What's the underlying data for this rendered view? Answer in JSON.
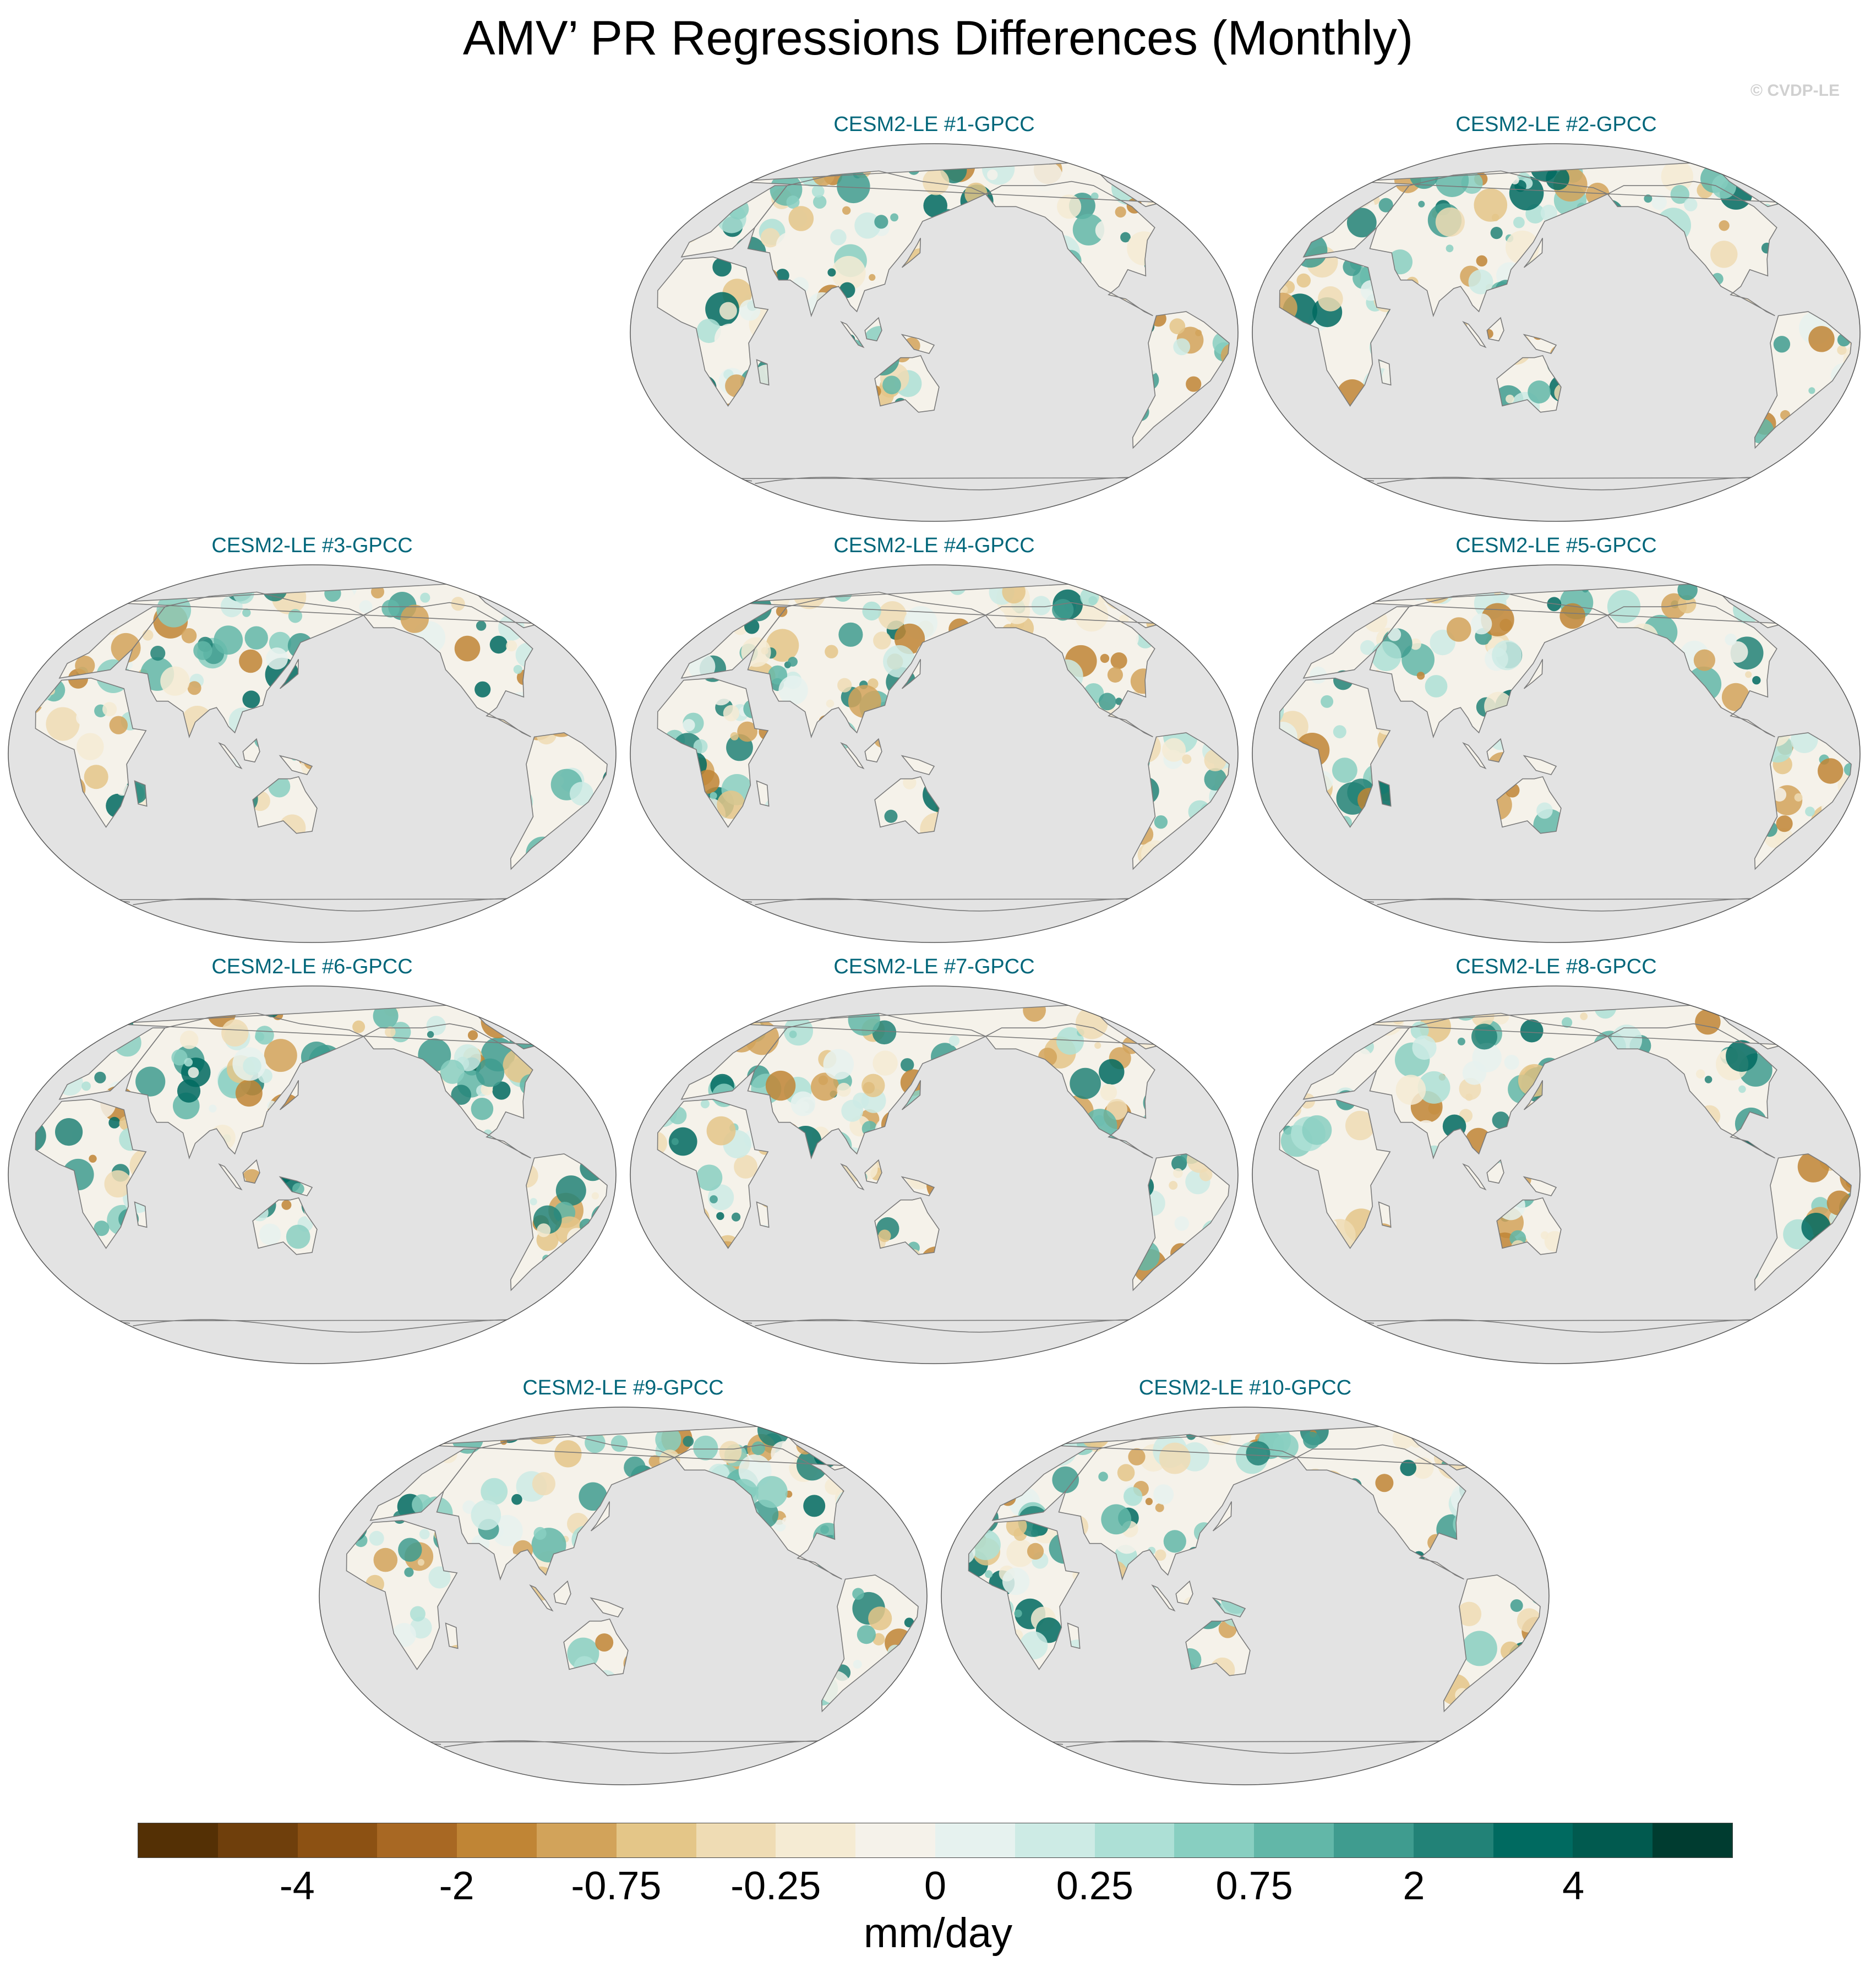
{
  "title": "AMV’ PR Regressions Differences (Monthly)",
  "copyright": "© CVDP-LE",
  "panels": [
    {
      "title": "CESM2-LE #1-GPCC"
    },
    {
      "title": "CESM2-LE #2-GPCC"
    },
    {
      "title": "CESM2-LE #3-GPCC"
    },
    {
      "title": "CESM2-LE #4-GPCC"
    },
    {
      "title": "CESM2-LE #5-GPCC"
    },
    {
      "title": "CESM2-LE #6-GPCC"
    },
    {
      "title": "CESM2-LE #7-GPCC"
    },
    {
      "title": "CESM2-LE #8-GPCC"
    },
    {
      "title": "CESM2-LE #9-GPCC"
    },
    {
      "title": "CESM2-LE #10-GPCC"
    }
  ],
  "colorbar": {
    "units": "mm/day",
    "colors": [
      "#543005",
      "#6f3f0c",
      "#8c5113",
      "#a86823",
      "#c08535",
      "#d2a35a",
      "#e4c688",
      "#efdcb4",
      "#f5ebd3",
      "#f5f2ea",
      "#e6f2ef",
      "#cdebe5",
      "#ade0d6",
      "#88cfc1",
      "#62b7a8",
      "#3f9c8f",
      "#228277",
      "#006a60",
      "#015a4f",
      "#003c30"
    ],
    "labels": [
      "-4",
      "-2",
      "-0.75",
      "-0.25",
      "0",
      "0.25",
      "0.75",
      "2",
      "4"
    ],
    "ocean_color": "#e3e3e3"
  }
}
